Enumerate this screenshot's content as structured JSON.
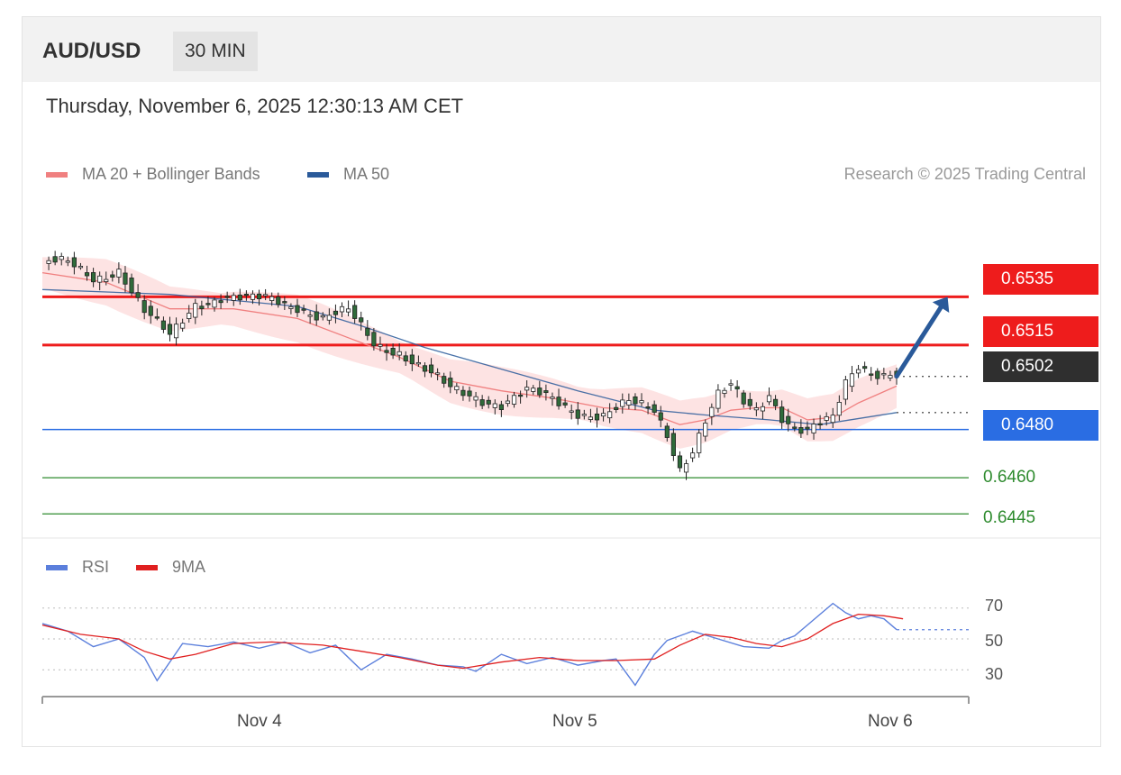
{
  "header": {
    "symbol": "AUD/USD",
    "timeframe": "30 MIN"
  },
  "datetime": "Thursday, November 6, 2025 12:30:13 AM CET",
  "legend": {
    "ma20": "MA 20 + Bollinger Bands",
    "ma50": "MA 50",
    "ma20_color": "#f08080",
    "ma50_color": "#2a5a9a",
    "credit": "Research © 2025 Trading Central",
    "rsi": "RSI",
    "rsi_color": "#5b7fdc",
    "ma9": "9MA",
    "ma9_color": "#e02020"
  },
  "levels": [
    {
      "value": "0.6535",
      "color": "#ee1c1c",
      "style": "tag"
    },
    {
      "value": "0.6515",
      "color": "#ee1c1c",
      "style": "tag"
    },
    {
      "value": "0.6502",
      "color": "#2f2f2f",
      "style": "tag"
    },
    {
      "value": "0.6480",
      "color": "#2a6de3",
      "style": "tag"
    },
    {
      "value": "0.6460",
      "color": "#2e8b2e",
      "style": "plain"
    },
    {
      "value": "0.6445",
      "color": "#2e8b2e",
      "style": "plain"
    }
  ],
  "rsi_levels": [
    "70",
    "50",
    "30"
  ],
  "x_labels": [
    "Nov 4",
    "Nov 5",
    "Nov 6"
  ],
  "chart_data": {
    "type": "candlestick",
    "interval": "30 MIN",
    "x_range": [
      "Nov 3",
      "Nov 6"
    ],
    "ylim": [
      0.6438,
      0.6568
    ],
    "price_path": [
      [
        0,
        0.6549
      ],
      [
        4,
        0.6548
      ],
      [
        8,
        0.6543
      ],
      [
        12,
        0.6547
      ],
      [
        16,
        0.6528
      ],
      [
        20,
        0.6518
      ],
      [
        24,
        0.6533
      ],
      [
        28,
        0.6535
      ],
      [
        32,
        0.6533
      ],
      [
        36,
        0.6534
      ],
      [
        40,
        0.6532
      ],
      [
        44,
        0.6526
      ],
      [
        48,
        0.6528
      ],
      [
        52,
        0.6516
      ],
      [
        56,
        0.6513
      ],
      [
        60,
        0.6504
      ],
      [
        64,
        0.6496
      ],
      [
        68,
        0.6494
      ],
      [
        72,
        0.6491
      ],
      [
        76,
        0.6495
      ],
      [
        80,
        0.6492
      ],
      [
        84,
        0.6488
      ],
      [
        88,
        0.6486
      ],
      [
        92,
        0.649
      ],
      [
        96,
        0.6488
      ],
      [
        98,
        0.6479
      ],
      [
        100,
        0.6465
      ],
      [
        102,
        0.6472
      ],
      [
        104,
        0.6483
      ],
      [
        106,
        0.6493
      ],
      [
        108,
        0.6497
      ],
      [
        110,
        0.6491
      ],
      [
        112,
        0.6489
      ],
      [
        114,
        0.6496
      ],
      [
        116,
        0.6486
      ],
      [
        118,
        0.648
      ],
      [
        120,
        0.6478
      ],
      [
        124,
        0.6484
      ],
      [
        126,
        0.65
      ],
      [
        128,
        0.6508
      ],
      [
        130,
        0.6505
      ],
      [
        132,
        0.6503
      ],
      [
        134,
        0.6502
      ]
    ],
    "ma20_path": [
      [
        0,
        0.6545
      ],
      [
        10,
        0.6541
      ],
      [
        20,
        0.653
      ],
      [
        30,
        0.653
      ],
      [
        40,
        0.6526
      ],
      [
        48,
        0.6518
      ],
      [
        56,
        0.651
      ],
      [
        64,
        0.65
      ],
      [
        72,
        0.6496
      ],
      [
        80,
        0.6493
      ],
      [
        88,
        0.6489
      ],
      [
        94,
        0.6488
      ],
      [
        100,
        0.6482
      ],
      [
        104,
        0.6484
      ],
      [
        108,
        0.6488
      ],
      [
        112,
        0.6489
      ],
      [
        116,
        0.6489
      ],
      [
        120,
        0.6484
      ],
      [
        124,
        0.6485
      ],
      [
        128,
        0.6491
      ],
      [
        134,
        0.6498
      ]
    ],
    "ma50_path": [
      [
        0,
        0.6538
      ],
      [
        20,
        0.6536
      ],
      [
        40,
        0.6531
      ],
      [
        50,
        0.6523
      ],
      [
        60,
        0.6514
      ],
      [
        72,
        0.6505
      ],
      [
        84,
        0.6496
      ],
      [
        96,
        0.6488
      ],
      [
        104,
        0.6486
      ],
      [
        114,
        0.6484
      ],
      [
        122,
        0.6482
      ],
      [
        134,
        0.6487
      ]
    ],
    "bollinger_half_width": 0.0008,
    "forecast_arrow": {
      "from": [
        134,
        0.6502
      ],
      "to": [
        142,
        0.6535
      ]
    },
    "rsi": {
      "ylim": [
        15,
        85
      ],
      "levels": [
        70,
        50,
        30
      ],
      "rsi_path": [
        [
          0,
          60
        ],
        [
          4,
          55
        ],
        [
          8,
          45
        ],
        [
          12,
          50
        ],
        [
          16,
          38
        ],
        [
          18,
          23
        ],
        [
          22,
          47
        ],
        [
          26,
          45
        ],
        [
          30,
          48
        ],
        [
          34,
          44
        ],
        [
          38,
          48
        ],
        [
          42,
          41
        ],
        [
          46,
          46
        ],
        [
          50,
          30
        ],
        [
          54,
          40
        ],
        [
          58,
          37
        ],
        [
          62,
          33
        ],
        [
          66,
          32
        ],
        [
          68,
          29
        ],
        [
          72,
          40
        ],
        [
          76,
          34
        ],
        [
          80,
          38
        ],
        [
          84,
          33
        ],
        [
          88,
          36
        ],
        [
          90,
          37
        ],
        [
          93,
          20
        ],
        [
          96,
          40
        ],
        [
          98,
          49
        ],
        [
          102,
          55
        ],
        [
          106,
          50
        ],
        [
          110,
          45
        ],
        [
          114,
          44
        ],
        [
          116,
          49
        ],
        [
          118,
          52
        ],
        [
          120,
          59
        ],
        [
          122,
          66
        ],
        [
          124,
          73
        ],
        [
          126,
          67
        ],
        [
          128,
          63
        ],
        [
          130,
          65
        ],
        [
          132,
          63
        ],
        [
          134,
          56
        ]
      ],
      "ma9_path": [
        [
          0,
          59
        ],
        [
          6,
          53
        ],
        [
          12,
          50
        ],
        [
          16,
          42
        ],
        [
          20,
          37
        ],
        [
          24,
          40
        ],
        [
          30,
          47
        ],
        [
          36,
          48
        ],
        [
          44,
          46
        ],
        [
          50,
          42
        ],
        [
          56,
          38
        ],
        [
          62,
          33
        ],
        [
          66,
          31
        ],
        [
          72,
          35
        ],
        [
          78,
          38
        ],
        [
          84,
          36
        ],
        [
          90,
          36
        ],
        [
          96,
          37
        ],
        [
          100,
          46
        ],
        [
          104,
          53
        ],
        [
          108,
          51
        ],
        [
          112,
          47
        ],
        [
          116,
          45
        ],
        [
          120,
          50
        ],
        [
          124,
          60
        ],
        [
          128,
          66
        ],
        [
          132,
          65
        ],
        [
          135,
          63
        ]
      ]
    }
  }
}
